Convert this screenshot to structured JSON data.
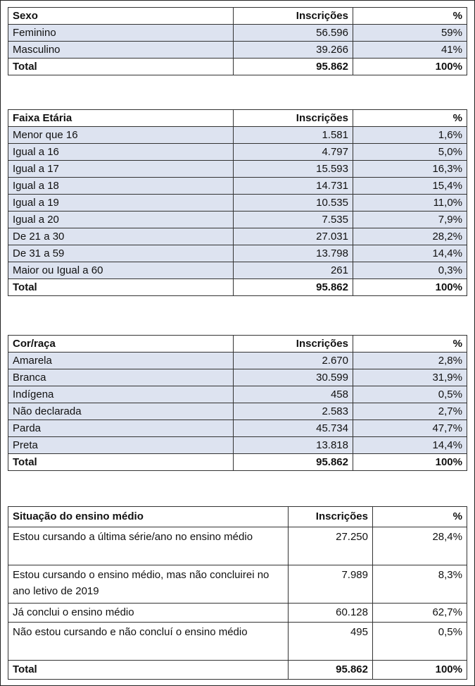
{
  "colors": {
    "shade": "#dde3f0",
    "border": "#333333"
  },
  "sexo": {
    "headers": [
      "Sexo",
      "Inscrições",
      "%"
    ],
    "rows": [
      [
        "Feminino",
        "56.596",
        "59%"
      ],
      [
        "Masculino",
        "39.266",
        "41%"
      ]
    ],
    "total": [
      "Total",
      "95.862",
      "100%"
    ]
  },
  "faixa": {
    "headers": [
      "Faixa Etária",
      "Inscrições",
      "%"
    ],
    "rows": [
      [
        "Menor que 16",
        "1.581",
        "1,6%"
      ],
      [
        "Igual a 16",
        "4.797",
        "5,0%"
      ],
      [
        "Igual a 17",
        "15.593",
        "16,3%"
      ],
      [
        "Igual a 18",
        "14.731",
        "15,4%"
      ],
      [
        "Igual a 19",
        "10.535",
        "11,0%"
      ],
      [
        "Igual a 20",
        "7.535",
        "7,9%"
      ],
      [
        "De 21 a 30",
        "27.031",
        "28,2%"
      ],
      [
        "De 31 a 59",
        "13.798",
        "14,4%"
      ],
      [
        "Maior ou Igual a 60",
        "261",
        "0,3%"
      ]
    ],
    "total": [
      "Total",
      "95.862",
      "100%"
    ]
  },
  "cor": {
    "headers": [
      "Cor/raça",
      "Inscrições",
      "%"
    ],
    "rows": [
      [
        "Amarela",
        "2.670",
        "2,8%"
      ],
      [
        "Branca",
        "30.599",
        "31,9%"
      ],
      [
        "Indígena",
        "458",
        "0,5%"
      ],
      [
        "Não declarada",
        "2.583",
        "2,7%"
      ],
      [
        "Parda",
        "45.734",
        "47,7%"
      ],
      [
        "Preta",
        "13.818",
        "14,4%"
      ]
    ],
    "total": [
      "Total",
      "95.862",
      "100%"
    ]
  },
  "ensino": {
    "headers": [
      "Situação do ensino médio",
      "Inscrições",
      "%"
    ],
    "rows": [
      [
        "Estou cursando a última série/ano no ensino médio",
        "27.250",
        "28,4%"
      ],
      [
        "Estou cursando o ensino médio, mas não concluirei no ano letivo de 2019",
        "7.989",
        "8,3%"
      ],
      [
        "Já conclui o ensino médio",
        "60.128",
        "62,7%"
      ],
      [
        "Não estou cursando e não concluí o ensino médio",
        "495",
        "0,5%"
      ]
    ],
    "total": [
      "Total",
      "95.862",
      "100%"
    ]
  }
}
